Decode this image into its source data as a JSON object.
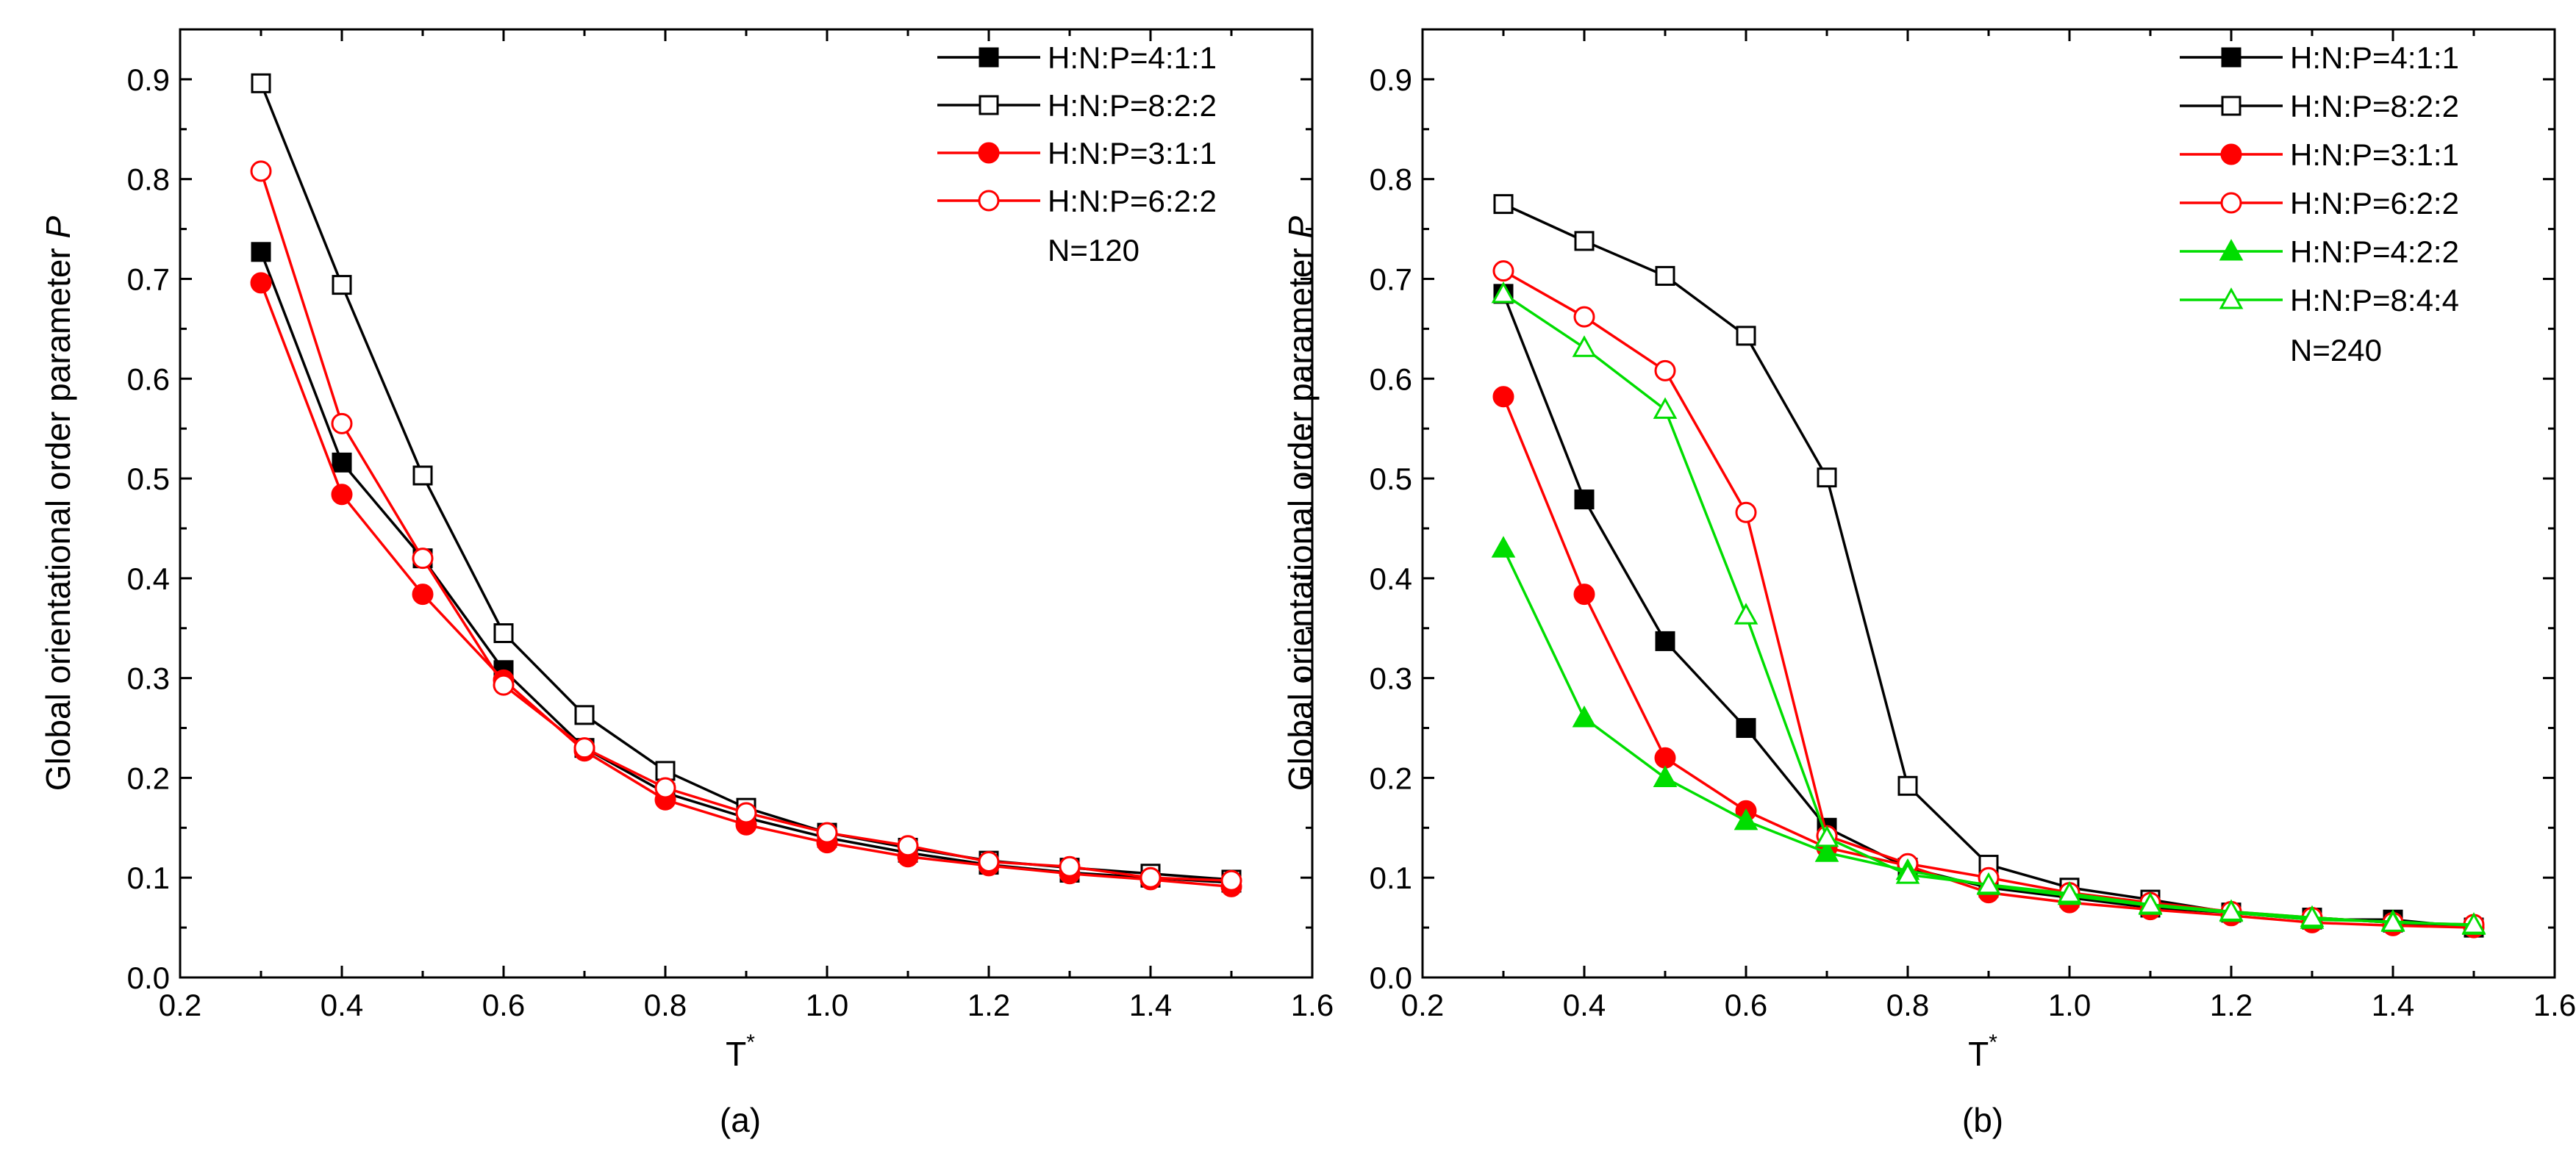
{
  "chart_data": [
    {
      "type": "line",
      "panel_label": "(a)",
      "xlabel": "T",
      "xlabel_superscript": "*",
      "ylabel": "Global orientational order parameter",
      "ylabel_symbol": "P",
      "xlim": [
        0.2,
        1.6
      ],
      "ylim": [
        0.0,
        0.95
      ],
      "xticks": [
        "0.2",
        "0.4",
        "0.6",
        "0.8",
        "1.0",
        "1.2",
        "1.4",
        "1.6"
      ],
      "yticks": [
        "0.0",
        "0.1",
        "0.2",
        "0.3",
        "0.4",
        "0.5",
        "0.6",
        "0.7",
        "0.8",
        "0.9"
      ],
      "grid": false,
      "legend_position": "top-right",
      "annotation": "N=120",
      "x": [
        0.3,
        0.4,
        0.5,
        0.6,
        0.7,
        0.8,
        0.9,
        1.0,
        1.1,
        1.2,
        1.3,
        1.4,
        1.5
      ],
      "series": [
        {
          "name": "H:N:P=4:1:1",
          "color": "#000000",
          "marker": "square",
          "filled": true,
          "values": [
            0.727,
            0.516,
            0.42,
            0.308,
            0.23,
            0.185,
            0.16,
            0.14,
            0.125,
            0.113,
            0.105,
            0.1,
            0.095
          ]
        },
        {
          "name": "H:N:P=8:2:2",
          "color": "#000000",
          "marker": "square",
          "filled": false,
          "values": [
            0.896,
            0.694,
            0.503,
            0.345,
            0.263,
            0.207,
            0.17,
            0.145,
            0.13,
            0.117,
            0.11,
            0.104,
            0.098
          ]
        },
        {
          "name": "H:N:P=3:1:1",
          "color": "#ff0000",
          "marker": "circle",
          "filled": true,
          "values": [
            0.696,
            0.484,
            0.384,
            0.298,
            0.227,
            0.178,
            0.153,
            0.135,
            0.121,
            0.112,
            0.104,
            0.098,
            0.091
          ]
        },
        {
          "name": "H:N:P=6:2:2",
          "color": "#ff0000",
          "marker": "circle",
          "filled": false,
          "values": [
            0.808,
            0.555,
            0.42,
            0.293,
            0.23,
            0.19,
            0.165,
            0.145,
            0.132,
            0.116,
            0.111,
            0.1,
            0.097
          ]
        }
      ]
    },
    {
      "type": "line",
      "panel_label": "(b)",
      "xlabel": "T",
      "xlabel_superscript": "*",
      "ylabel": "Global orientational order parameter",
      "ylabel_symbol": "P",
      "xlim": [
        0.2,
        1.6
      ],
      "ylim": [
        0.0,
        0.95
      ],
      "xticks": [
        "0.2",
        "0.4",
        "0.6",
        "0.8",
        "1.0",
        "1.2",
        "1.4",
        "1.6"
      ],
      "yticks": [
        "0.0",
        "0.1",
        "0.2",
        "0.3",
        "0.4",
        "0.5",
        "0.6",
        "0.7",
        "0.8",
        "0.9"
      ],
      "grid": false,
      "legend_position": "top-right",
      "annotation": "N=240",
      "x": [
        0.3,
        0.4,
        0.5,
        0.6,
        0.7,
        0.8,
        0.9,
        1.0,
        1.1,
        1.2,
        1.3,
        1.4,
        1.5
      ],
      "series": [
        {
          "name": "H:N:P=4:1:1",
          "color": "#000000",
          "marker": "square",
          "filled": true,
          "values": [
            0.685,
            0.479,
            0.337,
            0.25,
            0.15,
            0.11,
            0.09,
            0.08,
            0.07,
            0.065,
            0.058,
            0.058,
            0.05
          ]
        },
        {
          "name": "H:N:P=8:2:2",
          "color": "#000000",
          "marker": "square",
          "filled": false,
          "values": [
            0.775,
            0.738,
            0.703,
            0.643,
            0.501,
            0.192,
            0.113,
            0.09,
            0.078,
            0.065,
            0.06,
            0.055,
            0.05
          ]
        },
        {
          "name": "H:N:P=3:1:1",
          "color": "#ff0000",
          "marker": "circle",
          "filled": true,
          "values": [
            0.582,
            0.384,
            0.22,
            0.167,
            0.13,
            0.112,
            0.085,
            0.075,
            0.068,
            0.062,
            0.055,
            0.052,
            0.05
          ]
        },
        {
          "name": "H:N:P=6:2:2",
          "color": "#ff0000",
          "marker": "circle",
          "filled": false,
          "values": [
            0.708,
            0.662,
            0.608,
            0.466,
            0.142,
            0.114,
            0.1,
            0.085,
            0.075,
            0.066,
            0.06,
            0.055,
            0.053
          ]
        },
        {
          "name": "H:N:P=4:2:2",
          "color": "#00dd00",
          "marker": "triangle",
          "filled": true,
          "values": [
            0.43,
            0.26,
            0.2,
            0.157,
            0.125,
            0.107,
            0.092,
            0.082,
            0.072,
            0.065,
            0.058,
            0.056,
            0.052
          ]
        },
        {
          "name": "H:N:P=8:4:4",
          "color": "#00dd00",
          "marker": "triangle",
          "filled": false,
          "values": [
            0.685,
            0.631,
            0.569,
            0.363,
            0.14,
            0.103,
            0.093,
            0.084,
            0.073,
            0.066,
            0.06,
            0.055,
            0.053
          ]
        }
      ]
    }
  ]
}
